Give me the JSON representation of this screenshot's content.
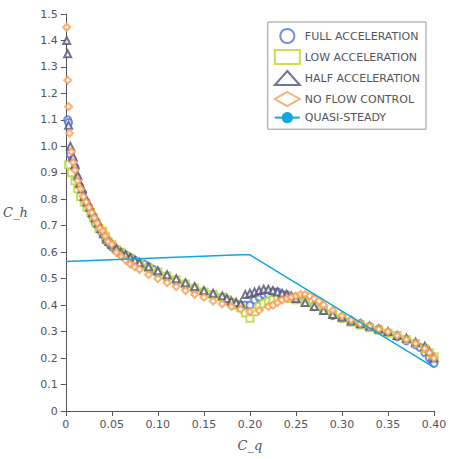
{
  "chart_data": {
    "type": "scatter",
    "xlabel": "C_q",
    "ylabel": "C_h",
    "xlim": [
      0.0,
      0.4
    ],
    "ylim": [
      0.0,
      1.5
    ],
    "xticks": [
      0,
      0.05,
      {
        "value": 0.1,
        "label": "0.10"
      },
      0.15,
      {
        "value": 0.2,
        "label": "0.20"
      },
      0.25,
      {
        "value": 0.3,
        "label": "0.30"
      },
      0.35,
      {
        "value": 0.4,
        "label": "0.40"
      }
    ],
    "yticks": [
      0,
      0.1,
      0.2,
      0.3,
      0.4,
      0.5,
      0.6,
      0.7,
      0.8,
      0.9,
      {
        "value": 1.0,
        "label": "1.0"
      },
      1.1,
      1.2,
      1.3,
      1.4,
      1.5
    ],
    "grid": false,
    "legend": "upper right",
    "series": [
      {
        "name": "FULL ACCELERATION",
        "type": "scatter",
        "marker": "circle",
        "x": [
          0.002,
          0.003,
          0.005,
          0.007,
          0.01,
          0.012,
          0.015,
          0.018,
          0.02,
          0.022,
          0.025,
          0.028,
          0.03,
          0.032,
          0.035,
          0.038,
          0.04,
          0.043,
          0.045,
          0.048,
          0.05,
          0.055,
          0.06,
          0.065,
          0.07,
          0.075,
          0.08,
          0.085,
          0.09,
          0.095,
          0.1,
          0.11,
          0.12,
          0.13,
          0.14,
          0.15,
          0.16,
          0.17,
          0.175,
          0.18,
          0.185,
          0.19,
          0.195,
          0.2,
          0.205,
          0.21,
          0.215,
          0.22,
          0.225,
          0.23,
          0.235,
          0.24,
          0.245,
          0.25,
          0.26,
          0.27,
          0.28,
          0.29,
          0.3,
          0.31,
          0.32,
          0.33,
          0.34,
          0.35,
          0.36,
          0.37,
          0.38,
          0.385,
          0.39,
          0.395,
          0.398,
          0.4
        ],
        "values": [
          1.1,
          1.09,
          0.97,
          0.95,
          0.92,
          0.88,
          0.85,
          0.82,
          0.8,
          0.79,
          0.77,
          0.74,
          0.73,
          0.71,
          0.7,
          0.68,
          0.67,
          0.65,
          0.64,
          0.63,
          0.62,
          0.61,
          0.6,
          0.59,
          0.58,
          0.57,
          0.56,
          0.555,
          0.545,
          0.535,
          0.52,
          0.505,
          0.49,
          0.475,
          0.46,
          0.45,
          0.44,
          0.43,
          0.42,
          0.41,
          0.405,
          0.4,
          0.4,
          0.4,
          0.42,
          0.43,
          0.44,
          0.44,
          0.45,
          0.45,
          0.44,
          0.44,
          0.43,
          0.43,
          0.42,
          0.4,
          0.38,
          0.36,
          0.35,
          0.34,
          0.33,
          0.32,
          0.31,
          0.295,
          0.28,
          0.265,
          0.25,
          0.24,
          0.22,
          0.2,
          0.19,
          0.18
        ]
      },
      {
        "name": "LOW ACCELERATION",
        "type": "scatter",
        "marker": "square",
        "x": [
          0.003,
          0.006,
          0.01,
          0.013,
          0.016,
          0.02,
          0.023,
          0.027,
          0.03,
          0.033,
          0.036,
          0.04,
          0.043,
          0.046,
          0.05,
          0.055,
          0.06,
          0.065,
          0.07,
          0.075,
          0.08,
          0.09,
          0.1,
          0.11,
          0.12,
          0.13,
          0.14,
          0.15,
          0.16,
          0.17,
          0.175,
          0.18,
          0.185,
          0.19,
          0.195,
          0.2,
          0.205,
          0.21,
          0.215,
          0.22,
          0.225,
          0.23,
          0.235,
          0.24,
          0.245,
          0.25,
          0.26,
          0.27,
          0.28,
          0.29,
          0.3,
          0.31,
          0.32,
          0.33,
          0.34,
          0.35,
          0.36,
          0.37,
          0.38,
          0.39,
          0.395,
          0.4
        ],
        "values": [
          0.93,
          0.9,
          0.87,
          0.84,
          0.81,
          0.79,
          0.77,
          0.75,
          0.73,
          0.71,
          0.69,
          0.68,
          0.66,
          0.64,
          0.63,
          0.61,
          0.6,
          0.585,
          0.575,
          0.565,
          0.555,
          0.54,
          0.525,
          0.51,
          0.495,
          0.48,
          0.465,
          0.45,
          0.44,
          0.43,
          0.42,
          0.41,
          0.4,
          0.39,
          0.37,
          0.35,
          0.375,
          0.395,
          0.405,
          0.415,
          0.42,
          0.425,
          0.43,
          0.43,
          0.425,
          0.42,
          0.41,
          0.395,
          0.38,
          0.365,
          0.35,
          0.335,
          0.325,
          0.315,
          0.305,
          0.295,
          0.285,
          0.27,
          0.255,
          0.235,
          0.22,
          0.205
        ]
      },
      {
        "name": "HALF ACCELERATION",
        "type": "scatter",
        "marker": "triangle",
        "x": [
          0.001,
          0.002,
          0.003,
          0.005,
          0.008,
          0.01,
          0.013,
          0.015,
          0.018,
          0.02,
          0.023,
          0.026,
          0.029,
          0.032,
          0.035,
          0.038,
          0.041,
          0.044,
          0.047,
          0.05,
          0.055,
          0.06,
          0.065,
          0.07,
          0.075,
          0.08,
          0.09,
          0.1,
          0.11,
          0.12,
          0.13,
          0.14,
          0.15,
          0.16,
          0.17,
          0.175,
          0.18,
          0.185,
          0.19,
          0.195,
          0.2,
          0.205,
          0.21,
          0.215,
          0.22,
          0.225,
          0.23,
          0.235,
          0.24,
          0.245,
          0.25,
          0.26,
          0.27,
          0.28,
          0.29,
          0.3,
          0.31,
          0.32,
          0.33,
          0.34,
          0.35,
          0.36,
          0.37,
          0.38,
          0.39,
          0.395,
          0.4
        ],
        "values": [
          1.4,
          1.35,
          1.08,
          1.0,
          0.96,
          0.93,
          0.89,
          0.86,
          0.84,
          0.81,
          0.79,
          0.77,
          0.75,
          0.73,
          0.71,
          0.69,
          0.67,
          0.65,
          0.64,
          0.63,
          0.615,
          0.6,
          0.59,
          0.58,
          0.57,
          0.56,
          0.545,
          0.53,
          0.515,
          0.5,
          0.485,
          0.47,
          0.455,
          0.445,
          0.435,
          0.425,
          0.415,
          0.41,
          0.405,
          0.44,
          0.445,
          0.45,
          0.455,
          0.46,
          0.46,
          0.455,
          0.45,
          0.445,
          0.44,
          0.435,
          0.425,
          0.41,
          0.395,
          0.38,
          0.365,
          0.355,
          0.34,
          0.33,
          0.32,
          0.31,
          0.3,
          0.285,
          0.275,
          0.26,
          0.245,
          0.225,
          0.2
        ]
      },
      {
        "name": "NO FLOW CONTROL",
        "type": "scatter",
        "marker": "diamond",
        "x": [
          0.001,
          0.002,
          0.003,
          0.004,
          0.006,
          0.008,
          0.01,
          0.013,
          0.016,
          0.019,
          0.022,
          0.025,
          0.028,
          0.031,
          0.034,
          0.037,
          0.04,
          0.043,
          0.046,
          0.05,
          0.055,
          0.06,
          0.065,
          0.07,
          0.075,
          0.08,
          0.09,
          0.1,
          0.11,
          0.12,
          0.13,
          0.14,
          0.15,
          0.16,
          0.17,
          0.18,
          0.19,
          0.2,
          0.21,
          0.22,
          0.225,
          0.23,
          0.235,
          0.24,
          0.245,
          0.25,
          0.255,
          0.26,
          0.265,
          0.27,
          0.275,
          0.28,
          0.29,
          0.3,
          0.31,
          0.32,
          0.33,
          0.34,
          0.35,
          0.36,
          0.37,
          0.38,
          0.39,
          0.395,
          0.4
        ],
        "values": [
          1.45,
          1.25,
          1.15,
          1.05,
          0.98,
          0.94,
          0.91,
          0.87,
          0.84,
          0.81,
          0.79,
          0.77,
          0.75,
          0.73,
          0.71,
          0.69,
          0.68,
          0.66,
          0.64,
          0.63,
          0.6,
          0.585,
          0.57,
          0.555,
          0.545,
          0.535,
          0.515,
          0.5,
          0.485,
          0.47,
          0.455,
          0.44,
          0.43,
          0.415,
          0.405,
          0.395,
          0.385,
          0.375,
          0.38,
          0.395,
          0.4,
          0.41,
          0.42,
          0.425,
          0.43,
          0.435,
          0.44,
          0.44,
          0.435,
          0.425,
          0.415,
          0.4,
          0.38,
          0.36,
          0.345,
          0.33,
          0.32,
          0.31,
          0.3,
          0.285,
          0.27,
          0.255,
          0.235,
          0.22,
          0.2
        ]
      },
      {
        "name": "QUASI-STEADY",
        "type": "line",
        "x": [
          0.0,
          0.19,
          0.2,
          0.4
        ],
        "values": [
          0.565,
          0.59,
          0.59,
          0.165
        ]
      }
    ]
  }
}
